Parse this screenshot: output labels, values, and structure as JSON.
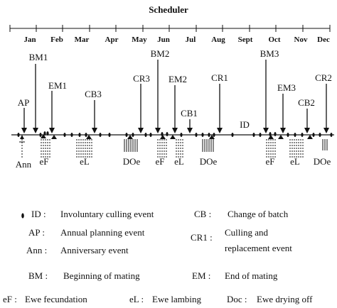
{
  "title": "Scheduler",
  "months": [
    "Jan",
    "Feb",
    "Mar",
    "Apr",
    "May",
    "Jun",
    "Jul",
    "Aug",
    "Sept",
    "Oct",
    "Nov",
    "Dec"
  ],
  "top_labels": {
    "bm1": "BM1",
    "em1": "EM1",
    "ap": "AP",
    "cb3": "CB3",
    "cr3": "CR3",
    "bm2": "BM2",
    "em2": "EM2",
    "cb1": "CB1",
    "cr1": "CR1",
    "id": "ID",
    "bm3": "BM3",
    "em3": "EM3",
    "cb2": "CB2",
    "cr2": "CR2"
  },
  "bottom_labels": {
    "ann": "Ann",
    "ef1": "eF",
    "el1": "eL",
    "doe1": "DOe",
    "ef2": "eF",
    "el2": "eL",
    "doe2": "DOe",
    "ef3": "eF",
    "el3": "eL",
    "doe3": "DOe"
  },
  "legend": {
    "id_key": "ID :",
    "id_text": "Involuntary culling event",
    "cb_key": "CB :",
    "cb_text": "Change of batch",
    "ap_key": "AP :",
    "ap_text": "Annual planning event",
    "cr_key": "CR1 :",
    "cr_text_1": "Culling and",
    "cr_text_2": "replacement event",
    "ann_key": "Ann :",
    "ann_text": "Anniversary event",
    "bm_key": "BM :",
    "bm_text": "Beginning of mating",
    "em_key": "EM :",
    "em_text": "End of mating",
    "ef_key": "eF :",
    "ef_text": "Ewe fecundation",
    "el_key": "eL :",
    "el_text": "Ewe lambing",
    "doc_key": "Doc :",
    "doc_text": "Ewe drying off"
  }
}
